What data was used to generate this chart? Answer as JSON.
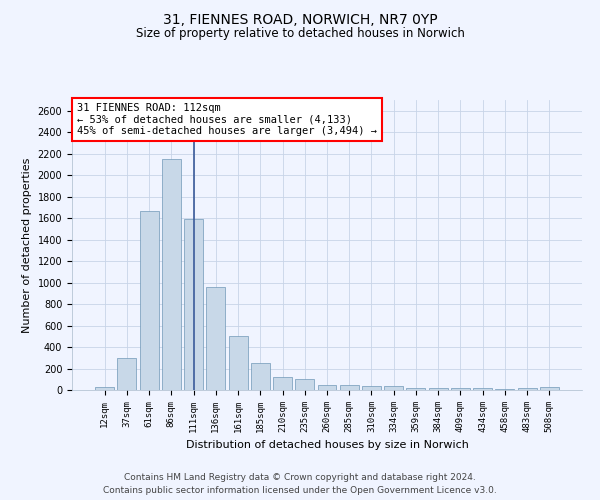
{
  "title_line1": "31, FIENNES ROAD, NORWICH, NR7 0YP",
  "title_line2": "Size of property relative to detached houses in Norwich",
  "xlabel": "Distribution of detached houses by size in Norwich",
  "ylabel": "Number of detached properties",
  "categories": [
    "12sqm",
    "37sqm",
    "61sqm",
    "86sqm",
    "111sqm",
    "136sqm",
    "161sqm",
    "185sqm",
    "210sqm",
    "235sqm",
    "260sqm",
    "285sqm",
    "310sqm",
    "334sqm",
    "359sqm",
    "384sqm",
    "409sqm",
    "434sqm",
    "458sqm",
    "483sqm",
    "508sqm"
  ],
  "values": [
    25,
    300,
    1670,
    2150,
    1595,
    960,
    505,
    250,
    120,
    100,
    50,
    50,
    35,
    35,
    20,
    20,
    20,
    20,
    5,
    20,
    25
  ],
  "bar_color": "#c8d8e8",
  "bar_edge_color": "#7098b8",
  "highlight_index": 4,
  "highlight_line_color": "#3a5a9a",
  "annotation_text": "31 FIENNES ROAD: 112sqm\n← 53% of detached houses are smaller (4,133)\n45% of semi-detached houses are larger (3,494) →",
  "annotation_box_color": "white",
  "annotation_box_edge_color": "red",
  "annotation_fontsize": 7.5,
  "ylim": [
    0,
    2700
  ],
  "yticks": [
    0,
    200,
    400,
    600,
    800,
    1000,
    1200,
    1400,
    1600,
    1800,
    2000,
    2200,
    2400,
    2600
  ],
  "title_fontsize1": 10,
  "title_fontsize2": 8.5,
  "xlabel_fontsize": 8,
  "ylabel_fontsize": 8,
  "footer_line1": "Contains HM Land Registry data © Crown copyright and database right 2024.",
  "footer_line2": "Contains public sector information licensed under the Open Government Licence v3.0.",
  "footer_fontsize": 6.5,
  "bg_color": "#f0f4ff",
  "grid_color": "#c8d4e8"
}
